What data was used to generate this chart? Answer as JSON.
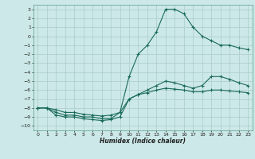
{
  "xlabel": "Humidex (Indice chaleur)",
  "bg_color": "#cce8e8",
  "grid_color": "#aacccc",
  "line_color": "#1a6b5a",
  "xlim": [
    -0.5,
    23.5
  ],
  "ylim": [
    -10.5,
    3.5
  ],
  "xticks": [
    0,
    1,
    2,
    3,
    4,
    5,
    6,
    7,
    8,
    9,
    10,
    11,
    12,
    13,
    14,
    15,
    16,
    17,
    18,
    19,
    20,
    21,
    22,
    23
  ],
  "yticks": [
    3,
    2,
    1,
    0,
    -1,
    -2,
    -3,
    -4,
    -5,
    -6,
    -7,
    -8,
    -9,
    -10
  ],
  "line1_x": [
    0,
    1,
    2,
    3,
    4,
    5,
    6,
    7,
    8,
    9,
    10,
    11,
    12,
    13,
    14,
    15,
    16,
    17,
    18,
    19,
    20,
    21,
    22,
    23
  ],
  "line1_y": [
    -8.0,
    -8.0,
    -8.5,
    -8.8,
    -8.8,
    -9.0,
    -9.0,
    -9.2,
    -9.2,
    -8.5,
    -4.5,
    -2.0,
    -1.0,
    0.5,
    3.0,
    3.0,
    2.5,
    1.0,
    0.0,
    -0.5,
    -1.0,
    -1.0,
    -1.3,
    -1.5
  ],
  "line2_x": [
    0,
    1,
    2,
    3,
    4,
    5,
    6,
    7,
    8,
    9,
    10,
    11,
    12,
    13,
    14,
    15,
    16,
    17,
    18,
    19,
    20,
    21,
    22,
    23
  ],
  "line2_y": [
    -8.0,
    -8.0,
    -8.8,
    -9.0,
    -9.0,
    -9.2,
    -9.3,
    -9.4,
    -9.3,
    -9.0,
    -7.0,
    -6.5,
    -6.0,
    -5.5,
    -5.0,
    -5.2,
    -5.5,
    -5.8,
    -5.5,
    -4.5,
    -4.5,
    -4.8,
    -5.2,
    -5.5
  ],
  "line3_x": [
    0,
    1,
    2,
    3,
    4,
    5,
    6,
    7,
    8,
    9,
    10,
    11,
    12,
    13,
    14,
    15,
    16,
    17,
    18,
    19,
    20,
    21,
    22,
    23
  ],
  "line3_y": [
    -8.0,
    -8.0,
    -8.2,
    -8.5,
    -8.5,
    -8.7,
    -8.8,
    -8.9,
    -8.8,
    -8.5,
    -7.0,
    -6.5,
    -6.3,
    -6.0,
    -5.8,
    -5.9,
    -6.0,
    -6.2,
    -6.2,
    -6.0,
    -6.0,
    -6.1,
    -6.2,
    -6.3
  ]
}
